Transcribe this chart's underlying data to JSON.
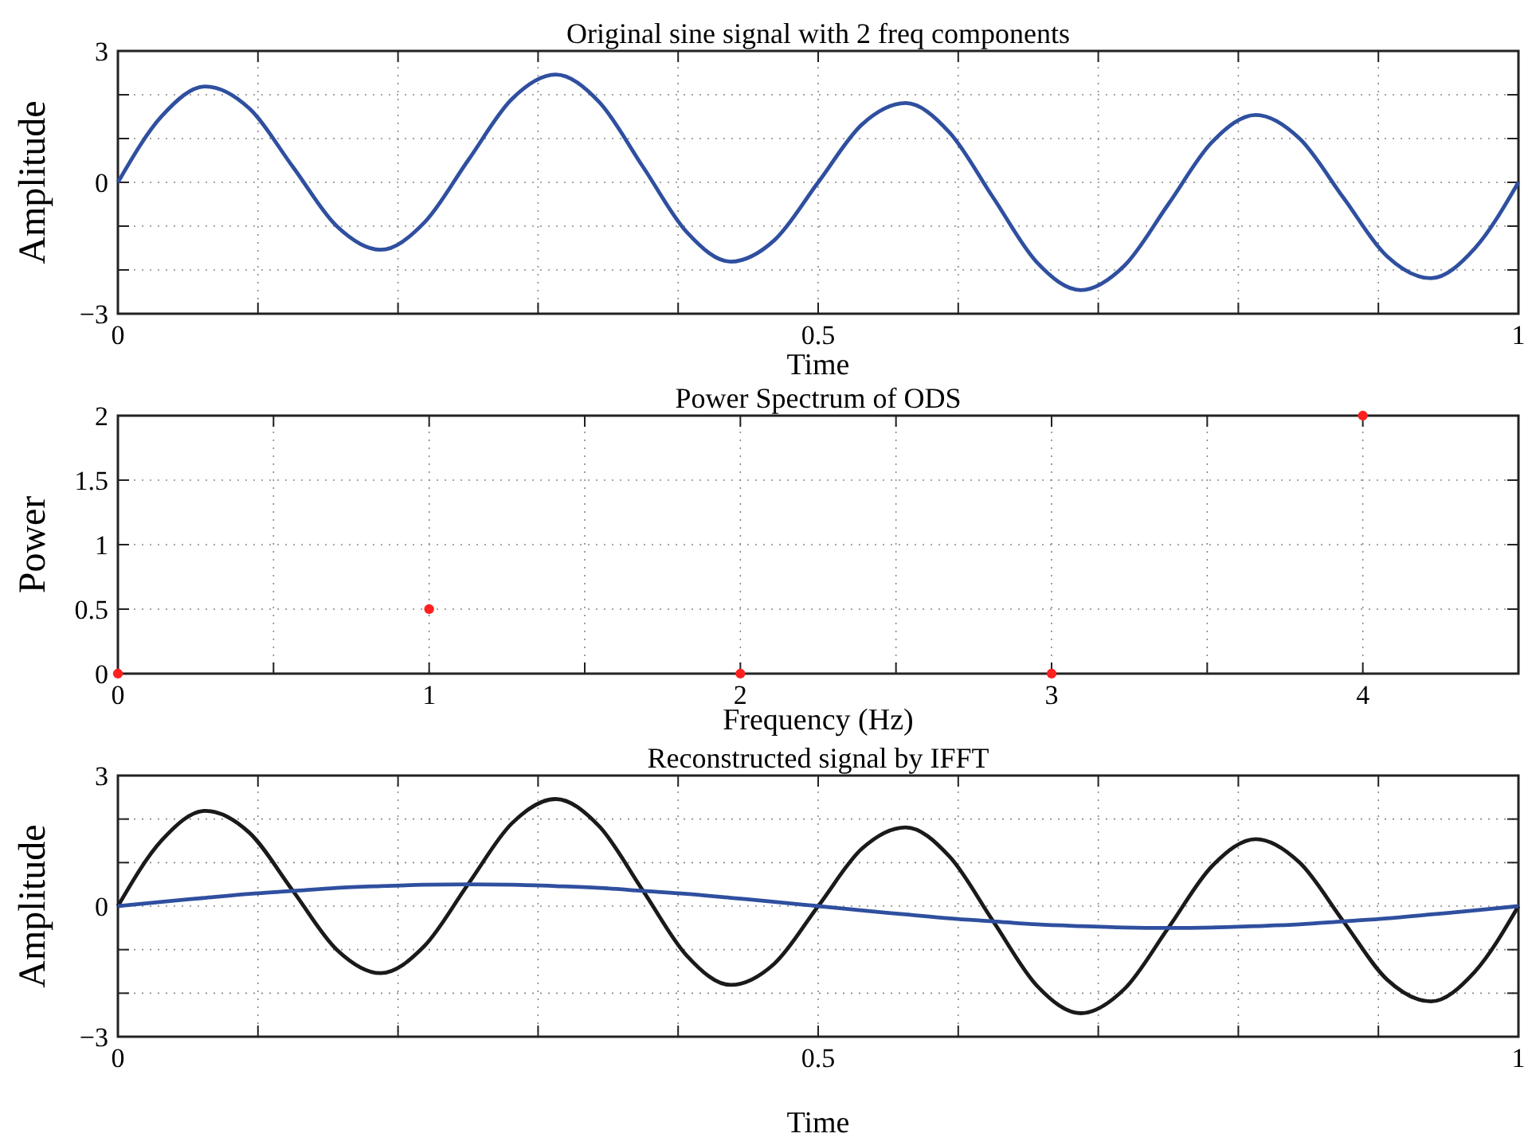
{
  "chart_data": [
    {
      "type": "line",
      "title": "Original sine signal with 2 freq components",
      "xlabel": "Time",
      "ylabel": "Amplitude",
      "grid": true,
      "marker": "none",
      "line_style": "solid",
      "xlim": [
        0,
        1
      ],
      "ylim": [
        -3,
        3
      ],
      "xticks": [
        0,
        {
          "value": 0.1,
          "label": null
        },
        {
          "value": 0.2,
          "label": null
        },
        {
          "value": 0.3,
          "label": null
        },
        {
          "value": 0.4,
          "label": null
        },
        0.5,
        {
          "value": 0.6,
          "label": null
        },
        {
          "value": 0.7,
          "label": null
        },
        {
          "value": 0.8,
          "label": null
        },
        {
          "value": 0.9,
          "label": null
        },
        1
      ],
      "yticks": [
        -3,
        {
          "value": -2,
          "label": null
        },
        {
          "value": -1,
          "label": null
        },
        0,
        {
          "value": 1,
          "label": null
        },
        {
          "value": 2,
          "label": null
        },
        3
      ],
      "x": [
        0,
        0.03125,
        0.0625,
        0.09375,
        0.125,
        0.15625,
        0.1875,
        0.21875,
        0.25,
        0.28125,
        0.3125,
        0.34375,
        0.375,
        0.40625,
        0.4375,
        0.46875,
        0.5,
        0.53125,
        0.5625,
        0.59375,
        0.625,
        0.65625,
        0.6875,
        0.71875,
        0.75,
        0.78125,
        0.8125,
        0.84375,
        0.875,
        0.90625,
        0.9375,
        0.96875,
        1
      ],
      "series": [
        {
          "color": "#2f4f9f",
          "values": [
            0,
            1.51,
            2.19,
            1.69,
            0.35,
            -1.0,
            -1.54,
            -0.92,
            0.5,
            1.9,
            2.46,
            1.83,
            0.35,
            -1.14,
            -1.81,
            -1.32,
            0,
            1.32,
            1.81,
            1.14,
            -0.35,
            -1.83,
            -2.46,
            -1.9,
            -0.5,
            0.92,
            1.54,
            1.0,
            -0.35,
            -1.69,
            -2.19,
            -1.51,
            0
          ]
        }
      ]
    },
    {
      "type": "scatter",
      "title": "Power Spectrum of ODS",
      "xlabel": "Frequency (Hz)",
      "ylabel": "Power",
      "grid": true,
      "marker": "circle",
      "xlim": [
        0,
        4.5
      ],
      "ylim": [
        0,
        2
      ],
      "xticks": [
        0,
        {
          "value": 0.5,
          "label": null
        },
        1,
        {
          "value": 1.5,
          "label": null
        },
        2,
        {
          "value": 2.5,
          "label": null
        },
        3,
        {
          "value": 3.5,
          "label": null
        },
        4,
        {
          "value": 4.5,
          "label": null
        }
      ],
      "yticks": [
        0,
        0.5,
        1,
        1.5,
        2
      ],
      "x": [
        0,
        1,
        2,
        3,
        4
      ],
      "series": [
        {
          "color": "#ff2020",
          "values": [
            0,
            0.5,
            0,
            0,
            2
          ]
        }
      ]
    },
    {
      "type": "line",
      "title": "Reconstructed signal by IFFT",
      "xlabel": "Time",
      "ylabel": "Amplitude",
      "grid": true,
      "marker": "none",
      "line_style": "solid",
      "xlim": [
        0,
        1
      ],
      "ylim": [
        -3,
        3
      ],
      "xticks": [
        0,
        {
          "value": 0.1,
          "label": null
        },
        {
          "value": 0.2,
          "label": null
        },
        {
          "value": 0.3,
          "label": null
        },
        {
          "value": 0.4,
          "label": null
        },
        0.5,
        {
          "value": 0.6,
          "label": null
        },
        {
          "value": 0.7,
          "label": null
        },
        {
          "value": 0.8,
          "label": null
        },
        {
          "value": 0.9,
          "label": null
        },
        1
      ],
      "yticks": [
        -3,
        {
          "value": -2,
          "label": null
        },
        {
          "value": -1,
          "label": null
        },
        0,
        {
          "value": 1,
          "label": null
        },
        {
          "value": 2,
          "label": null
        },
        3
      ],
      "x": [
        0,
        0.03125,
        0.0625,
        0.09375,
        0.125,
        0.15625,
        0.1875,
        0.21875,
        0.25,
        0.28125,
        0.3125,
        0.34375,
        0.375,
        0.40625,
        0.4375,
        0.46875,
        0.5,
        0.53125,
        0.5625,
        0.59375,
        0.625,
        0.65625,
        0.6875,
        0.71875,
        0.75,
        0.78125,
        0.8125,
        0.84375,
        0.875,
        0.90625,
        0.9375,
        0.96875,
        1
      ],
      "series": [
        {
          "color": "#1a1a1a",
          "values": [
            0,
            1.51,
            2.19,
            1.69,
            0.35,
            -1.0,
            -1.54,
            -0.92,
            0.5,
            1.9,
            2.46,
            1.83,
            0.35,
            -1.14,
            -1.81,
            -1.32,
            0,
            1.32,
            1.81,
            1.14,
            -0.35,
            -1.83,
            -2.46,
            -1.9,
            -0.5,
            0.92,
            1.54,
            1.0,
            -0.35,
            -1.69,
            -2.19,
            -1.51,
            0
          ]
        },
        {
          "color": "#2f4f9f",
          "values": [
            0,
            0.1,
            0.19,
            0.28,
            0.35,
            0.42,
            0.46,
            0.49,
            0.5,
            0.49,
            0.46,
            0.42,
            0.35,
            0.28,
            0.19,
            0.1,
            0,
            -0.1,
            -0.19,
            -0.28,
            -0.35,
            -0.42,
            -0.46,
            -0.49,
            -0.5,
            -0.49,
            -0.46,
            -0.42,
            -0.35,
            -0.28,
            -0.19,
            -0.1,
            0
          ]
        }
      ]
    }
  ]
}
